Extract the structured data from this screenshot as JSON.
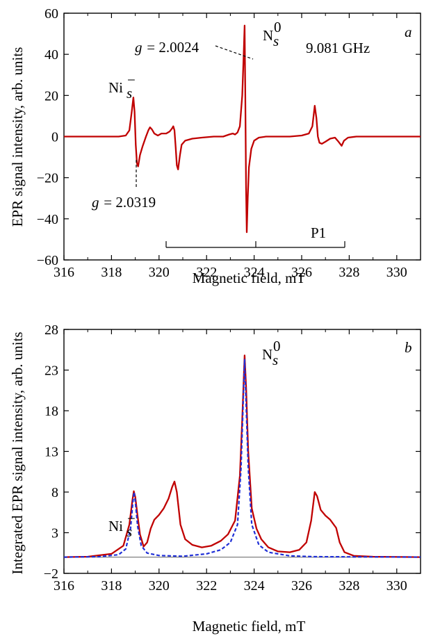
{
  "figure": {
    "panels": [
      {
        "id": "a",
        "panel_letter": "a",
        "frequency_label": "9.081 GHz",
        "xlabel": "Magnetic field, mT",
        "ylabel": "EPR signal intensity,  arb. units",
        "annotations": {
          "ni_main": "Ni",
          "ni_sub": "s",
          "ni_sup": "−",
          "n_main": "N",
          "n_sub": "s",
          "n_sup": "0",
          "g_high_symbol": "g",
          "g_high_value": " = 2.0024",
          "g_low_symbol": "g",
          "g_low_value": " = 2.0319",
          "p1_label": "P1"
        }
      },
      {
        "id": "b",
        "panel_letter": "b",
        "xlabel": "Magnetic field, mT",
        "ylabel": "Integrated EPR signal intensity,  arb. units",
        "annotations": {
          "ni_main": "Ni",
          "ni_sub": "s",
          "ni_sup": "−",
          "n_main": "N",
          "n_sub": "s",
          "n_sup": "0"
        }
      }
    ],
    "colors": {
      "experimental": "#c00000",
      "simulated": "#1f2fd6",
      "baseline": "#808080",
      "axes": "#000000"
    }
  },
  "chart_data": [
    {
      "type": "line",
      "panel": "a",
      "xlabel": "Magnetic field, mT",
      "ylabel": "EPR signal intensity,  arb. units",
      "xlim": [
        316,
        331
      ],
      "ylim": [
        -60,
        60
      ],
      "xticks": [
        316,
        318,
        320,
        322,
        324,
        326,
        328,
        330
      ],
      "yticks": [
        -60,
        -40,
        -20,
        0,
        20,
        40,
        60
      ],
      "grid": false,
      "series": [
        {
          "style": "solid",
          "color": "#c00000",
          "points": [
            [
              316.0,
              0
            ],
            [
              318.3,
              0
            ],
            [
              318.6,
              0.5
            ],
            [
              318.75,
              3
            ],
            [
              318.85,
              12
            ],
            [
              318.92,
              19
            ],
            [
              318.97,
              12
            ],
            [
              319.02,
              -4
            ],
            [
              319.07,
              -13
            ],
            [
              319.12,
              -14.5
            ],
            [
              319.2,
              -9
            ],
            [
              319.3,
              -5
            ],
            [
              319.45,
              0
            ],
            [
              319.55,
              3
            ],
            [
              319.62,
              4.5
            ],
            [
              319.7,
              3.5
            ],
            [
              319.8,
              1.5
            ],
            [
              319.95,
              0.5
            ],
            [
              320.1,
              1.5
            ],
            [
              320.3,
              1.5
            ],
            [
              320.45,
              2.5
            ],
            [
              320.55,
              4
            ],
            [
              320.6,
              5
            ],
            [
              320.65,
              3
            ],
            [
              320.7,
              -5
            ],
            [
              320.75,
              -14
            ],
            [
              320.8,
              -16
            ],
            [
              320.88,
              -9
            ],
            [
              320.95,
              -4
            ],
            [
              321.1,
              -2
            ],
            [
              321.4,
              -1
            ],
            [
              321.8,
              -0.5
            ],
            [
              322.3,
              0
            ],
            [
              322.7,
              0
            ],
            [
              322.95,
              1
            ],
            [
              323.1,
              1.5
            ],
            [
              323.2,
              1
            ],
            [
              323.3,
              2
            ],
            [
              323.4,
              5
            ],
            [
              323.5,
              20
            ],
            [
              323.56,
              40
            ],
            [
              323.6,
              54
            ],
            [
              323.63,
              20
            ],
            [
              323.66,
              -25
            ],
            [
              323.69,
              -46.5
            ],
            [
              323.73,
              -30
            ],
            [
              323.78,
              -15
            ],
            [
              323.88,
              -6
            ],
            [
              324.0,
              -2
            ],
            [
              324.2,
              -0.5
            ],
            [
              324.5,
              0
            ],
            [
              325.0,
              0
            ],
            [
              325.5,
              0
            ],
            [
              326.0,
              0.5
            ],
            [
              326.3,
              1.5
            ],
            [
              326.45,
              5
            ],
            [
              326.55,
              15
            ],
            [
              326.62,
              9
            ],
            [
              326.68,
              0
            ],
            [
              326.75,
              -3
            ],
            [
              326.85,
              -3.5
            ],
            [
              327.0,
              -2.5
            ],
            [
              327.2,
              -1
            ],
            [
              327.4,
              -0.5
            ],
            [
              327.55,
              -2.5
            ],
            [
              327.68,
              -4.5
            ],
            [
              327.78,
              -2
            ],
            [
              327.95,
              -0.5
            ],
            [
              328.3,
              0
            ],
            [
              331.0,
              0
            ]
          ]
        }
      ]
    },
    {
      "type": "line",
      "panel": "b",
      "xlabel": "Magnetic field, mT",
      "ylabel": "Integrated EPR signal intensity,  arb. units",
      "xlim": [
        316,
        331
      ],
      "ylim": [
        -2,
        28
      ],
      "xticks": [
        316,
        318,
        320,
        322,
        324,
        326,
        328,
        330
      ],
      "yticks": [
        -2,
        3,
        8,
        13,
        18,
        23,
        28
      ],
      "grid": false,
      "series": [
        {
          "style": "solid",
          "color": "#808080",
          "points": [
            [
              316,
              0
            ],
            [
              331,
              0
            ]
          ]
        },
        {
          "style": "solid",
          "color": "#c00000",
          "points": [
            [
              316.0,
              0
            ],
            [
              317.0,
              0.05
            ],
            [
              318.0,
              0.4
            ],
            [
              318.5,
              1.4
            ],
            [
              318.75,
              4
            ],
            [
              318.88,
              7
            ],
            [
              318.94,
              8.1
            ],
            [
              319.0,
              7.4
            ],
            [
              319.1,
              5
            ],
            [
              319.2,
              2.8
            ],
            [
              319.35,
              1.3
            ],
            [
              319.5,
              1.8
            ],
            [
              319.65,
              3.5
            ],
            [
              319.8,
              4.6
            ],
            [
              320.0,
              5.2
            ],
            [
              320.2,
              6.0
            ],
            [
              320.4,
              7.2
            ],
            [
              320.55,
              8.6
            ],
            [
              320.65,
              9.3
            ],
            [
              320.75,
              8.0
            ],
            [
              320.9,
              4.0
            ],
            [
              321.1,
              2.2
            ],
            [
              321.4,
              1.5
            ],
            [
              321.8,
              1.2
            ],
            [
              322.2,
              1.4
            ],
            [
              322.6,
              2.0
            ],
            [
              322.9,
              2.8
            ],
            [
              323.2,
              4.5
            ],
            [
              323.4,
              10
            ],
            [
              323.5,
              17
            ],
            [
              323.6,
              24.8
            ],
            [
              323.66,
              21
            ],
            [
              323.75,
              13
            ],
            [
              323.9,
              6
            ],
            [
              324.1,
              3.5
            ],
            [
              324.3,
              2.2
            ],
            [
              324.6,
              1.2
            ],
            [
              325.0,
              0.7
            ],
            [
              325.5,
              0.6
            ],
            [
              325.9,
              0.9
            ],
            [
              326.2,
              1.8
            ],
            [
              326.4,
              4.5
            ],
            [
              326.55,
              8.0
            ],
            [
              326.65,
              7.5
            ],
            [
              326.8,
              5.8
            ],
            [
              327.0,
              5.1
            ],
            [
              327.2,
              4.6
            ],
            [
              327.45,
              3.6
            ],
            [
              327.6,
              1.8
            ],
            [
              327.8,
              0.6
            ],
            [
              328.2,
              0.15
            ],
            [
              329.0,
              0.05
            ],
            [
              331.0,
              0
            ]
          ]
        },
        {
          "style": "dashed",
          "color": "#1f2fd6",
          "points": [
            [
              316.0,
              0
            ],
            [
              317.5,
              0.05
            ],
            [
              318.3,
              0.3
            ],
            [
              318.6,
              1.0
            ],
            [
              318.8,
              3.5
            ],
            [
              318.9,
              6.8
            ],
            [
              318.95,
              8.0
            ],
            [
              319.0,
              6.9
            ],
            [
              319.1,
              3.8
            ],
            [
              319.25,
              1.4
            ],
            [
              319.5,
              0.5
            ],
            [
              320.0,
              0.2
            ],
            [
              321.0,
              0.1
            ],
            [
              322.0,
              0.4
            ],
            [
              322.6,
              0.9
            ],
            [
              323.0,
              1.8
            ],
            [
              323.3,
              4
            ],
            [
              323.45,
              11
            ],
            [
              323.55,
              20
            ],
            [
              323.6,
              24.3
            ],
            [
              323.65,
              20
            ],
            [
              323.75,
              11
            ],
            [
              323.9,
              4
            ],
            [
              324.2,
              1.5
            ],
            [
              324.6,
              0.6
            ],
            [
              325.5,
              0.15
            ],
            [
              326.5,
              0.05
            ],
            [
              331.0,
              0
            ]
          ]
        }
      ]
    }
  ]
}
